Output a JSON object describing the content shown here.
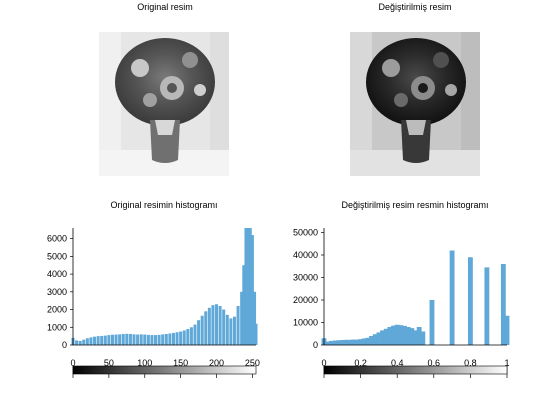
{
  "panels": {
    "original_image_title": "Original resim",
    "modified_image_title": "Değiştirilmiş resim",
    "original_hist_title": "Original resimin histogramı",
    "modified_hist_title": "Değiştirilmiş resim resmin histogramı"
  },
  "chart_data": [
    {
      "type": "bar",
      "title": "Original resimin histogramı",
      "xlabel": "",
      "ylabel": "",
      "xlim": [
        0,
        255
      ],
      "ylim": [
        0,
        6600
      ],
      "yticks": [
        0,
        1000,
        2000,
        3000,
        4000,
        5000,
        6000
      ],
      "xticks": [
        0,
        50,
        100,
        150,
        200,
        250
      ],
      "ytick_labels": [
        "0",
        "1000",
        "2000",
        "3000",
        "4000",
        "5000",
        "6000"
      ],
      "xtick_labels": [
        "0",
        "50",
        "100",
        "150",
        "200",
        "250"
      ],
      "bar_color": "#5fa8d8",
      "colorbar": {
        "from": "#000000",
        "to": "#ffffff"
      },
      "values": [
        {
          "x": 0,
          "y": 400
        },
        {
          "x": 5,
          "y": 260
        },
        {
          "x": 10,
          "y": 230
        },
        {
          "x": 15,
          "y": 300
        },
        {
          "x": 20,
          "y": 380
        },
        {
          "x": 25,
          "y": 430
        },
        {
          "x": 30,
          "y": 470
        },
        {
          "x": 35,
          "y": 500
        },
        {
          "x": 40,
          "y": 510
        },
        {
          "x": 45,
          "y": 530
        },
        {
          "x": 50,
          "y": 560
        },
        {
          "x": 55,
          "y": 580
        },
        {
          "x": 60,
          "y": 590
        },
        {
          "x": 65,
          "y": 600
        },
        {
          "x": 70,
          "y": 620
        },
        {
          "x": 75,
          "y": 630
        },
        {
          "x": 80,
          "y": 620
        },
        {
          "x": 85,
          "y": 600
        },
        {
          "x": 90,
          "y": 590
        },
        {
          "x": 95,
          "y": 600
        },
        {
          "x": 100,
          "y": 590
        },
        {
          "x": 105,
          "y": 570
        },
        {
          "x": 110,
          "y": 560
        },
        {
          "x": 115,
          "y": 560
        },
        {
          "x": 120,
          "y": 570
        },
        {
          "x": 125,
          "y": 600
        },
        {
          "x": 130,
          "y": 620
        },
        {
          "x": 135,
          "y": 650
        },
        {
          "x": 140,
          "y": 680
        },
        {
          "x": 145,
          "y": 720
        },
        {
          "x": 150,
          "y": 760
        },
        {
          "x": 155,
          "y": 820
        },
        {
          "x": 160,
          "y": 900
        },
        {
          "x": 165,
          "y": 1000
        },
        {
          "x": 170,
          "y": 1150
        },
        {
          "x": 175,
          "y": 1400
        },
        {
          "x": 180,
          "y": 1650
        },
        {
          "x": 185,
          "y": 1900
        },
        {
          "x": 190,
          "y": 2100
        },
        {
          "x": 195,
          "y": 2250
        },
        {
          "x": 200,
          "y": 2300
        },
        {
          "x": 205,
          "y": 2200
        },
        {
          "x": 210,
          "y": 2000
        },
        {
          "x": 215,
          "y": 1700
        },
        {
          "x": 220,
          "y": 1500
        },
        {
          "x": 225,
          "y": 1600
        },
        {
          "x": 230,
          "y": 2200
        },
        {
          "x": 235,
          "y": 3000
        },
        {
          "x": 238,
          "y": 4500
        },
        {
          "x": 241,
          "y": 6600
        },
        {
          "x": 244,
          "y": 6600
        },
        {
          "x": 247,
          "y": 6600
        },
        {
          "x": 250,
          "y": 6200
        },
        {
          "x": 253,
          "y": 3000
        },
        {
          "x": 255,
          "y": 1200
        }
      ]
    },
    {
      "type": "bar",
      "title": "Değiştirilmiş resim resmin histogramı",
      "xlabel": "",
      "ylabel": "",
      "xlim": [
        0,
        1
      ],
      "ylim": [
        0,
        52000
      ],
      "yticks": [
        0,
        10000,
        20000,
        30000,
        40000,
        50000
      ],
      "xticks": [
        0,
        0.2,
        0.4,
        0.6,
        0.8,
        1
      ],
      "ytick_labels": [
        "0",
        "10000",
        "20000",
        "30000",
        "40000",
        "50000"
      ],
      "xtick_labels": [
        "0",
        "0.2",
        "0.4",
        "0.6",
        "0.8",
        "1"
      ],
      "bar_color": "#5fa8d8",
      "colorbar": {
        "from": "#000000",
        "to": "#ffffff"
      },
      "values": [
        {
          "x": 0.0,
          "y": 3000
        },
        {
          "x": 0.02,
          "y": 1500
        },
        {
          "x": 0.04,
          "y": 1800
        },
        {
          "x": 0.06,
          "y": 2000
        },
        {
          "x": 0.08,
          "y": 2100
        },
        {
          "x": 0.1,
          "y": 2200
        },
        {
          "x": 0.12,
          "y": 2300
        },
        {
          "x": 0.14,
          "y": 2300
        },
        {
          "x": 0.16,
          "y": 2400
        },
        {
          "x": 0.18,
          "y": 2400
        },
        {
          "x": 0.2,
          "y": 2600
        },
        {
          "x": 0.22,
          "y": 2900
        },
        {
          "x": 0.24,
          "y": 3200
        },
        {
          "x": 0.26,
          "y": 4000
        },
        {
          "x": 0.28,
          "y": 4800
        },
        {
          "x": 0.3,
          "y": 5600
        },
        {
          "x": 0.32,
          "y": 6500
        },
        {
          "x": 0.34,
          "y": 7200
        },
        {
          "x": 0.36,
          "y": 8000
        },
        {
          "x": 0.38,
          "y": 8600
        },
        {
          "x": 0.4,
          "y": 9000
        },
        {
          "x": 0.42,
          "y": 8800
        },
        {
          "x": 0.44,
          "y": 8500
        },
        {
          "x": 0.46,
          "y": 8000
        },
        {
          "x": 0.48,
          "y": 7500
        },
        {
          "x": 0.5,
          "y": 6500
        },
        {
          "x": 0.52,
          "y": 8000
        },
        {
          "x": 0.54,
          "y": 6000
        },
        {
          "x": 0.59,
          "y": 20000
        },
        {
          "x": 0.7,
          "y": 42000
        },
        {
          "x": 0.8,
          "y": 39000
        },
        {
          "x": 0.89,
          "y": 34500
        },
        {
          "x": 0.98,
          "y": 36000
        },
        {
          "x": 1.0,
          "y": 13000
        }
      ]
    }
  ]
}
